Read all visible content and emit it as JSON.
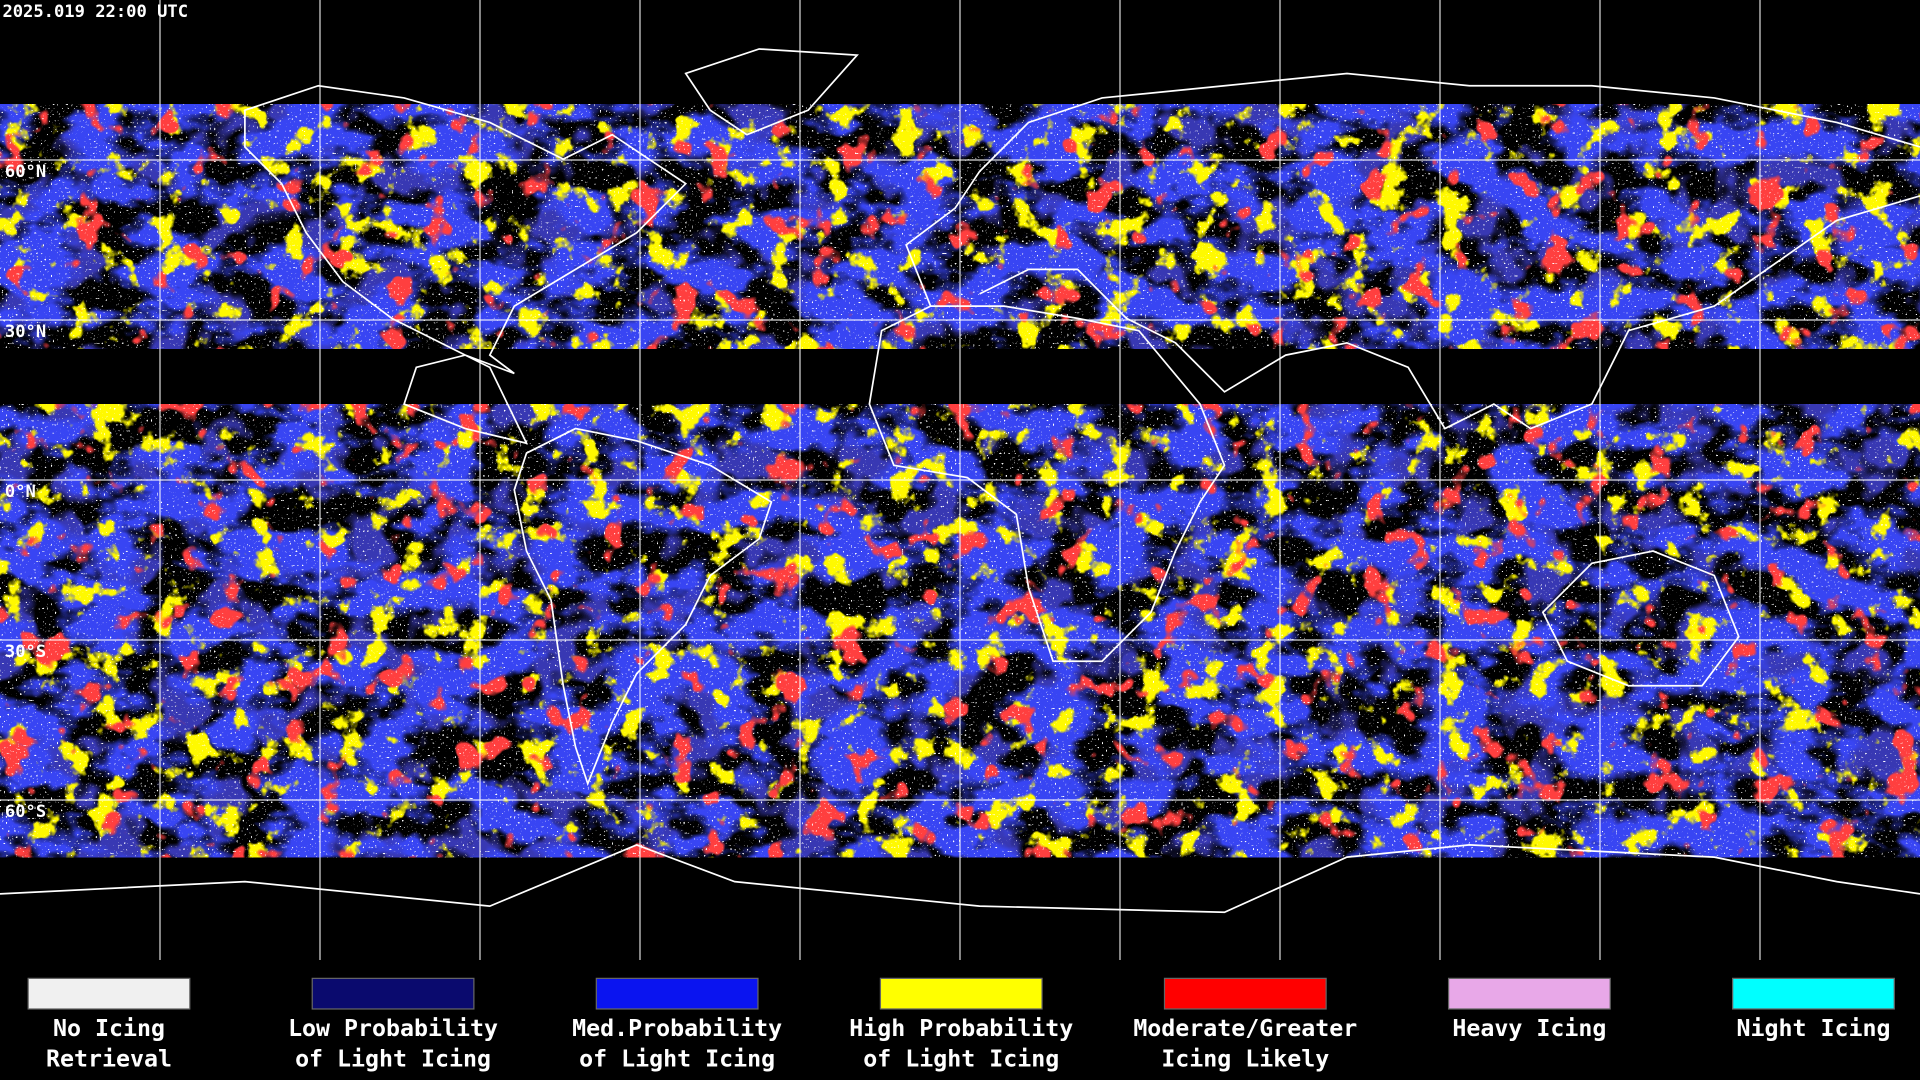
{
  "header": {
    "timestamp": "2025.019 22:00 UTC"
  },
  "map": {
    "latitude_labels": [
      "60°N",
      "30°N",
      "0°N",
      "30°S",
      "60°S"
    ]
  },
  "legend": {
    "items": [
      {
        "label": [
          "No Icing",
          "Retrieval"
        ],
        "color": "#f0f0f0"
      },
      {
        "label": [
          "Low Probability",
          "of Light Icing"
        ],
        "color": "#0a0a6e"
      },
      {
        "label": [
          "Med.Probability",
          "of Light Icing"
        ],
        "color": "#0a14f0"
      },
      {
        "label": [
          "High Probability",
          "of Light Icing"
        ],
        "color": "#ffff00"
      },
      {
        "label": [
          "Moderate/Greater",
          "Icing Likely"
        ],
        "color": "#ff0000"
      },
      {
        "label": [
          "Heavy Icing"
        ],
        "color": "#e8a8e8"
      },
      {
        "label": [
          "Night Icing"
        ],
        "color": "#00ffff"
      }
    ]
  }
}
